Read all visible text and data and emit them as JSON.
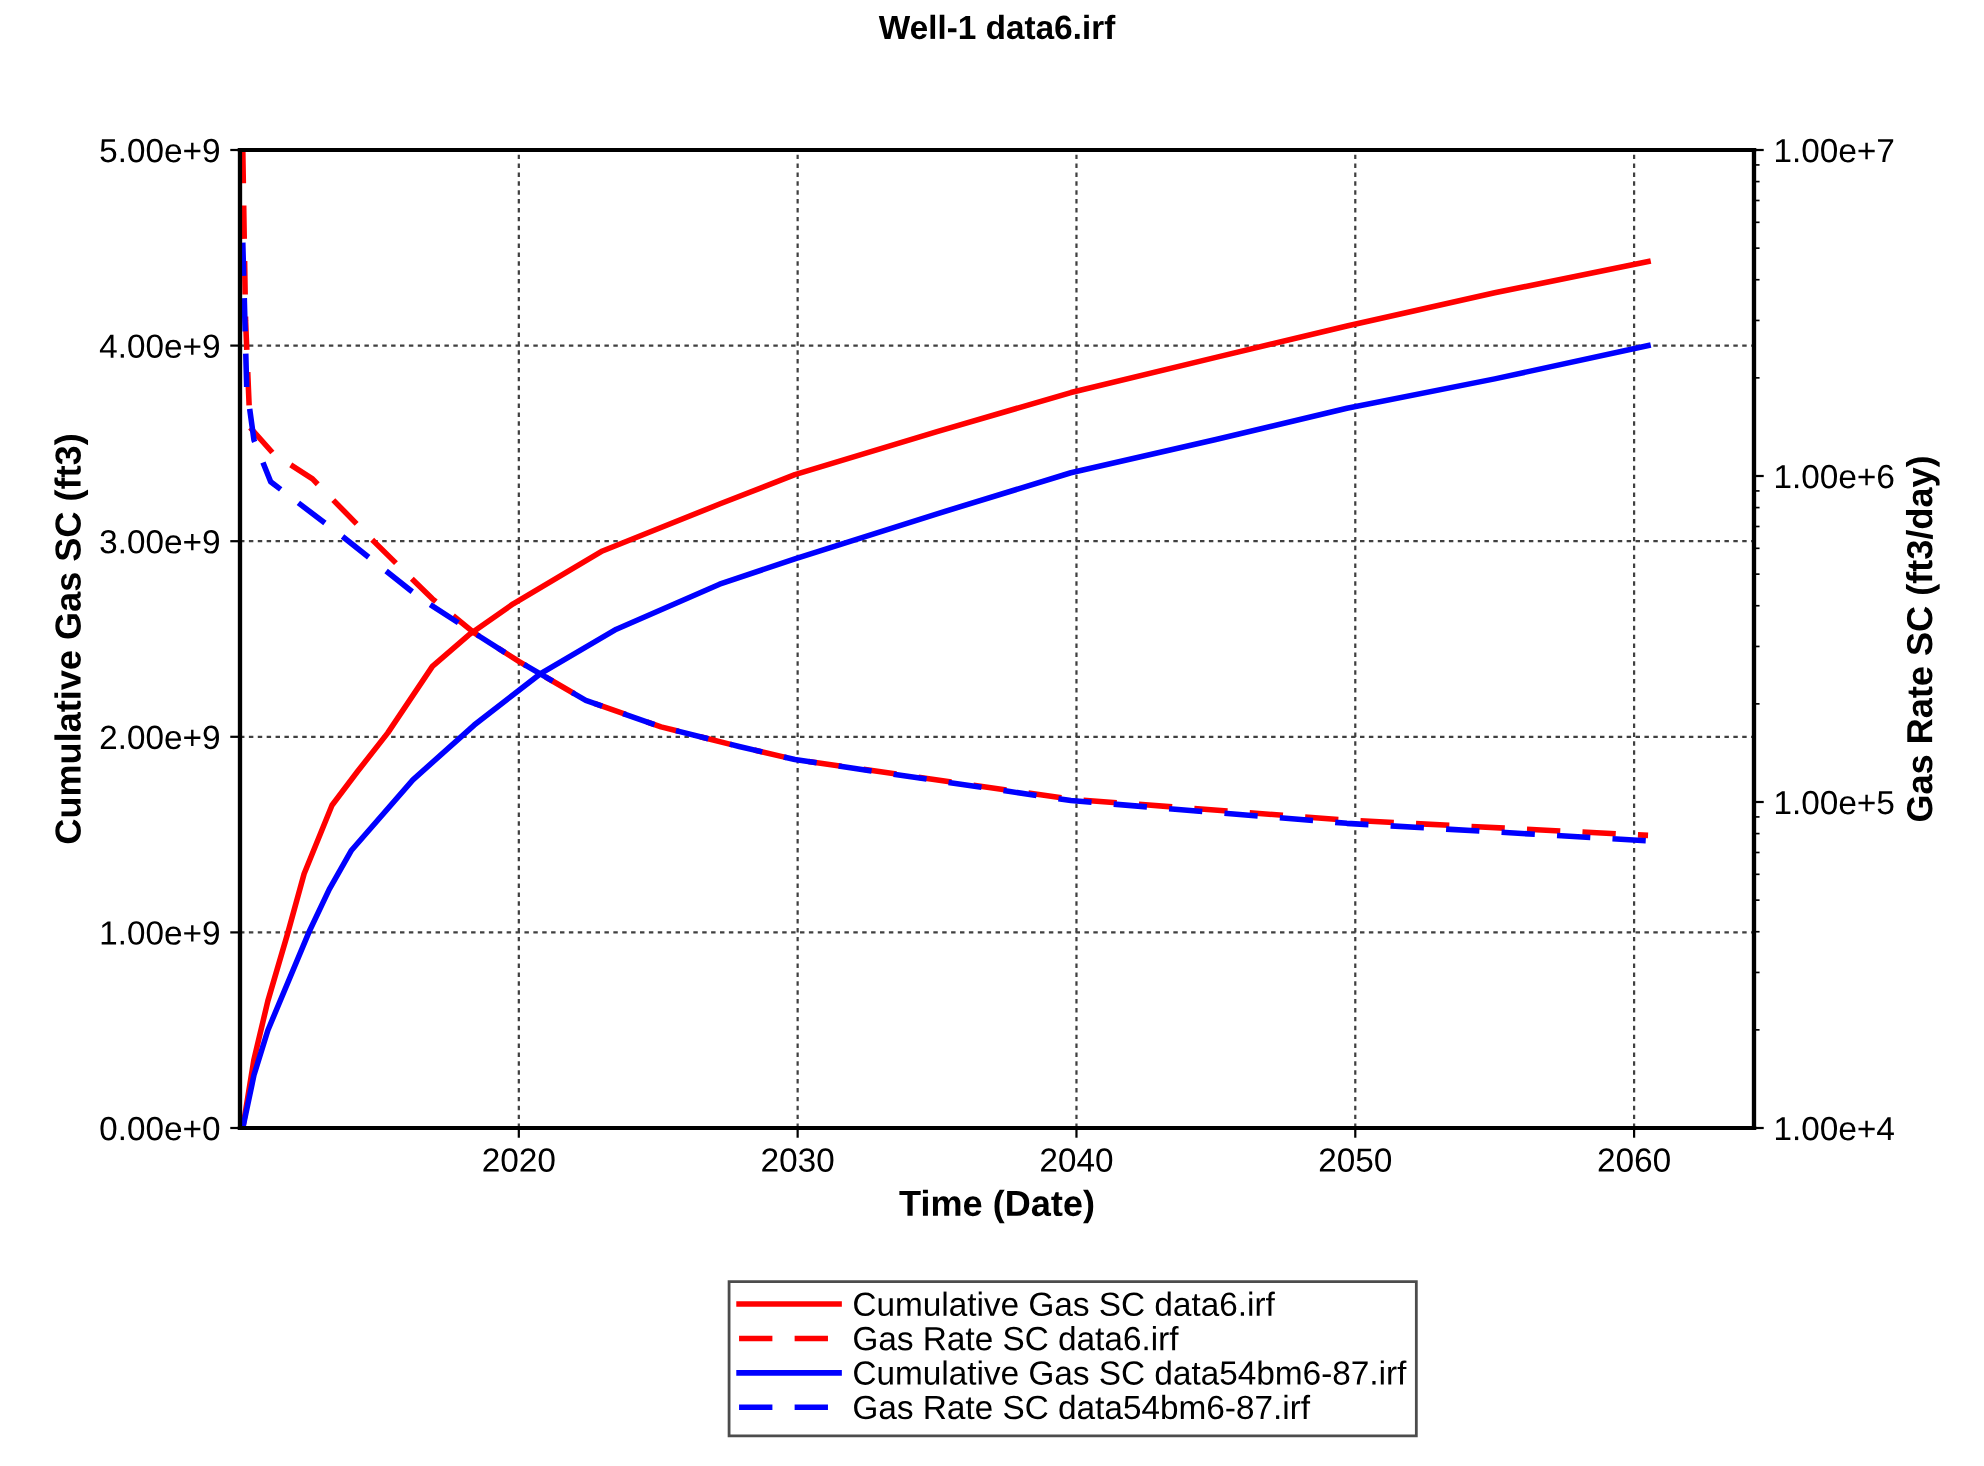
{
  "chart_data": {
    "type": "line",
    "title": "Well-1 data6.irf",
    "xlabel": "Time (Date)",
    "ylabel": "Cumulative Gas SC (ft3)",
    "y2label": "Gas Rate SC (ft3/day)",
    "xlim": [
      2010,
      2064.3
    ],
    "xticks": [
      2020,
      2030,
      2040,
      2050,
      2060
    ],
    "ylim": [
      0,
      5000000000
    ],
    "yticks": [
      {
        "value": 0,
        "label": "0.00e+0"
      },
      {
        "value": 1000000000,
        "label": "1.00e+9"
      },
      {
        "value": 2000000000,
        "label": "2.00e+9"
      },
      {
        "value": 3000000000,
        "label": "3.00e+9"
      },
      {
        "value": 4000000000,
        "label": "4.00e+9"
      },
      {
        "value": 5000000000,
        "label": "5.00e+9"
      }
    ],
    "y2lim": [
      10000,
      10000000
    ],
    "y2ticks": [
      {
        "value": 10000,
        "label": "1.00e+4"
      },
      {
        "value": 100000,
        "label": "1.00e+5"
      },
      {
        "value": 1000000,
        "label": "1.00e+6"
      },
      {
        "value": 10000000,
        "label": "1.00e+7"
      }
    ],
    "log": "y2",
    "grid": true,
    "legend": "bottom",
    "series": [
      {
        "name": "Cumulative Gas SC data6.irf",
        "color": "#ff0000",
        "line_style": "solid",
        "x": [
          2010.1,
          2010.5,
          2011.0,
          2011.7,
          2012.3,
          2013.3,
          2014.2,
          2015.3,
          2016.9,
          2018.2,
          2019.8,
          2023.0,
          2027.2,
          2029.9,
          2035.0,
          2039.8,
          2045.0,
          2049.7,
          2055.0,
          2060.5
        ],
        "values": [
          0,
          350000000,
          650000000,
          990000000,
          1300000000,
          1650000000,
          1820000000,
          2020000000,
          2360000000,
          2520000000,
          2680000000,
          2950000000,
          3190000000,
          3340000000,
          3560000000,
          3760000000,
          3940000000,
          4100000000,
          4270000000,
          4430000000
        ]
      },
      {
        "name": "Gas Rate SC data6.irf",
        "color": "#ff0000",
        "line_style": "dashed",
        "axis": "y2",
        "x": [
          2010.1,
          2010.2,
          2010.36,
          2011.2,
          2012.6,
          2014.8,
          2016.9,
          2018.4,
          2020.0,
          2022.4,
          2025.1,
          2027.9,
          2029.9,
          2039.8,
          2049.7,
          2060.5
        ],
        "values": [
          10000000,
          3000000,
          1410000,
          1170000,
          980000,
          630000,
          420000,
          330000,
          270000,
          205000,
          170000,
          148000,
          135000,
          102000,
          88000,
          79000
        ]
      },
      {
        "name": "Cumulative Gas SC data54bm6-87.irf",
        "color": "#0000ff",
        "line_style": "solid",
        "x": [
          2010.1,
          2010.5,
          2011.0,
          2012.5,
          2013.2,
          2014.0,
          2016.2,
          2018.4,
          2020.75,
          2023.5,
          2027.2,
          2029.9,
          2035.0,
          2039.8,
          2045.0,
          2049.7,
          2055.0,
          2060.5
        ],
        "values": [
          0,
          270000000,
          500000000,
          1010000000,
          1220000000,
          1420000000,
          1780000000,
          2060000000,
          2320000000,
          2550000000,
          2780000000,
          2910000000,
          3140000000,
          3350000000,
          3520000000,
          3680000000,
          3830000000,
          4000000000
        ]
      },
      {
        "name": "Gas Rate SC data54bm6-87.irf",
        "color": "#0000ff",
        "line_style": "dashed",
        "axis": "y2",
        "x": [
          2010.1,
          2010.24,
          2010.5,
          2011.1,
          2013.6,
          2016.5,
          2018.4,
          2020.0,
          2022.4,
          2025.1,
          2027.9,
          2029.9,
          2039.8,
          2049.7,
          2060.5
        ],
        "values": [
          5200000,
          1870000,
          1290000,
          960000,
          660000,
          420000,
          330000,
          270000,
          205000,
          170000,
          148000,
          135000,
          101000,
          86000,
          76000
        ]
      }
    ]
  }
}
